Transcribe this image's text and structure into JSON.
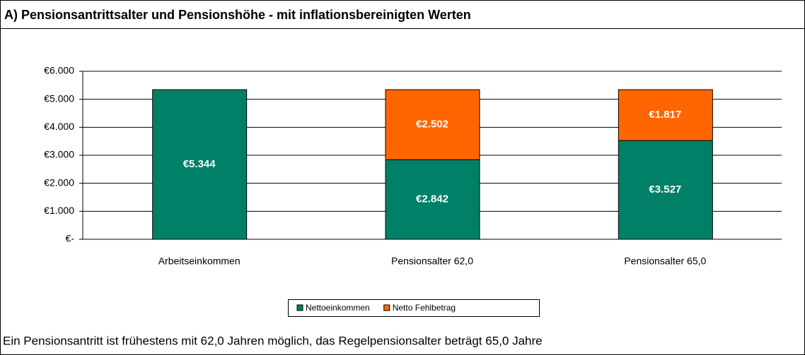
{
  "chart_data": {
    "type": "stacked_bar",
    "title": "A) Pensionsantrittsalter und Pensionshöhe - mit inflationsbereinigten Werten",
    "categories": [
      "Arbeitseinkommen",
      "Pensionsalter 62,0",
      "Pensionsalter 65,0"
    ],
    "series": [
      {
        "name": "Nettoeinkommen",
        "color": "#008066",
        "values": [
          5344,
          2842,
          3527
        ],
        "value_labels": [
          "€5.344",
          "€2.842",
          "€3.527"
        ]
      },
      {
        "name": "Netto Fehlbetrag",
        "color": "#ff6600",
        "values": [
          null,
          2502,
          1817
        ],
        "value_labels": [
          null,
          "€2.502",
          "€1.817"
        ]
      }
    ],
    "ylim": [
      0,
      6000
    ],
    "yticks": [
      {
        "value": 0,
        "label": "€-"
      },
      {
        "value": 1000,
        "label": "€1.000"
      },
      {
        "value": 2000,
        "label": "€2.000"
      },
      {
        "value": 3000,
        "label": "€3.000"
      },
      {
        "value": 4000,
        "label": "€4.000"
      },
      {
        "value": 5000,
        "label": "€5.000"
      },
      {
        "value": 6000,
        "label": "€6.000"
      }
    ],
    "grid": true,
    "legend": "bottom",
    "footnote": "Ein Pensionsantritt ist frühestens mit 62,0 Jahren möglich, das Regelpensionsalter beträgt 65,0 Jahre"
  }
}
